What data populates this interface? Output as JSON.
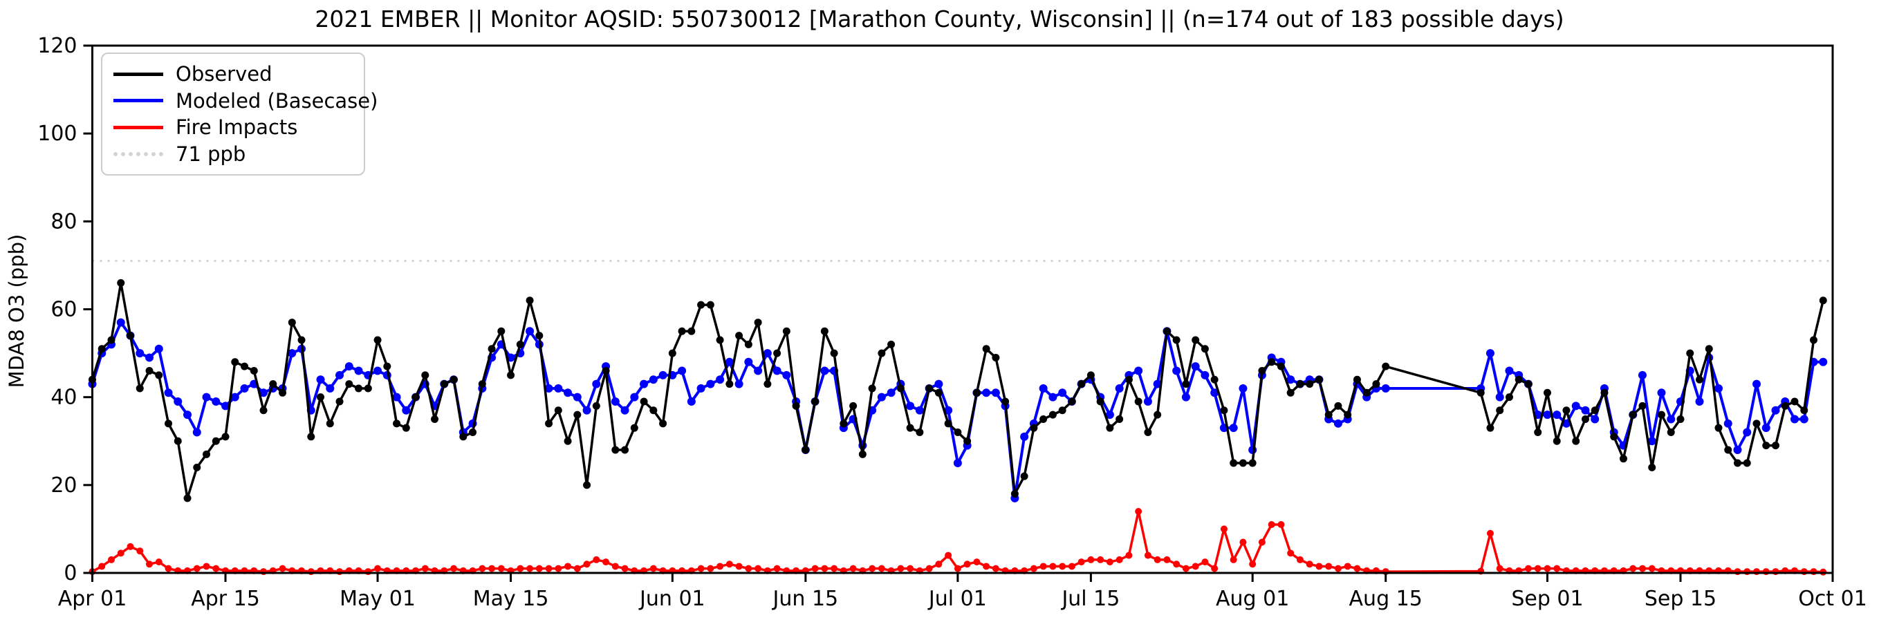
{
  "title": "2021 EMBER || Monitor AQSID: 550730012 [Marathon County, Wisconsin] || (n=174 out of 183 possible days)",
  "y_axis": {
    "label": "MDA8 O3 (ppb)",
    "ticks": [
      0,
      20,
      40,
      60,
      80,
      100,
      120
    ]
  },
  "x_axis": {
    "ticks": [
      {
        "label": "Apr 01",
        "day": 0
      },
      {
        "label": "Apr 15",
        "day": 14
      },
      {
        "label": "May 01",
        "day": 30
      },
      {
        "label": "May 15",
        "day": 44
      },
      {
        "label": "Jun 01",
        "day": 61
      },
      {
        "label": "Jun 15",
        "day": 75
      },
      {
        "label": "Jul 01",
        "day": 91
      },
      {
        "label": "Jul 15",
        "day": 105
      },
      {
        "label": "Aug 01",
        "day": 122
      },
      {
        "label": "Aug 15",
        "day": 136
      },
      {
        "label": "Sep 01",
        "day": 153
      },
      {
        "label": "Sep 15",
        "day": 167
      },
      {
        "label": "Oct 01",
        "day": 183
      }
    ]
  },
  "legend": {
    "items": [
      {
        "label": "Observed",
        "color": "#000000",
        "style": "solid"
      },
      {
        "label": "Modeled (Basecase)",
        "color": "#0000ff",
        "style": "solid"
      },
      {
        "label": "Fire Impacts",
        "color": "#ff0000",
        "style": "solid"
      },
      {
        "label": "71 ppb",
        "color": "#d3d3d3",
        "style": "dotted"
      }
    ]
  },
  "chart_data": {
    "type": "line",
    "title": "2021 EMBER || Monitor AQSID: 550730012 [Marathon County, Wisconsin] || (n=174 out of 183 possible days)",
    "xlabel": "",
    "ylabel": "MDA8 O3 (ppb)",
    "ylim": [
      0,
      120
    ],
    "x_days_total": 183,
    "x_start_label": "Apr 01",
    "x_end_label": "Oct 01",
    "grid": false,
    "legend_position": "upper left",
    "threshold": {
      "value": 71,
      "label": "71 ppb",
      "color": "#d3d3d3"
    },
    "note_missing_days": "Aug 16 - Aug 24 have no data (n=174 of 183); lines connect straight across the gap",
    "series": [
      {
        "name": "Observed",
        "color": "#000000",
        "marker_radius": 5.5,
        "line_width": 3.5,
        "values": [
          44,
          51,
          53,
          66,
          54,
          42,
          46,
          45,
          34,
          30,
          17,
          24,
          27,
          30,
          31,
          48,
          47,
          46,
          37,
          43,
          41,
          57,
          53,
          31,
          40,
          34,
          39,
          43,
          42,
          42,
          53,
          47,
          34,
          33,
          40,
          45,
          35,
          43,
          44,
          31,
          32,
          43,
          51,
          55,
          45,
          52,
          62,
          54,
          34,
          37,
          30,
          36,
          20,
          38,
          46,
          28,
          28,
          33,
          39,
          37,
          34,
          50,
          55,
          55,
          61,
          61,
          53,
          43,
          54,
          52,
          57,
          43,
          50,
          55,
          38,
          28,
          39,
          55,
          50,
          34,
          38,
          27,
          42,
          50,
          52,
          42,
          33,
          32,
          42,
          41,
          34,
          32,
          30,
          41,
          51,
          49,
          39,
          18,
          22,
          33,
          35,
          36,
          37,
          39,
          43,
          45,
          39,
          33,
          35,
          44,
          39,
          32,
          36,
          55,
          53,
          43,
          53,
          51,
          44,
          37,
          25,
          25,
          25,
          46,
          48,
          47,
          41,
          43,
          43,
          44,
          36,
          38,
          36,
          44,
          41,
          43,
          47,
          null,
          null,
          null,
          null,
          null,
          null,
          null,
          null,
          null,
          41,
          33,
          37,
          40,
          44,
          43,
          32,
          41,
          30,
          37,
          30,
          35,
          37,
          41,
          31,
          26,
          36,
          38,
          24,
          36,
          32,
          35,
          50,
          44,
          51,
          33,
          28,
          25,
          25,
          34,
          29,
          29,
          38,
          39,
          37,
          53,
          62
        ]
      },
      {
        "name": "Modeled (Basecase)",
        "color": "#0000ff",
        "marker_radius": 6,
        "line_width": 4,
        "values": [
          43,
          50,
          52,
          57,
          54,
          50,
          49,
          51,
          41,
          39,
          36,
          32,
          40,
          39,
          38,
          40,
          42,
          43,
          41,
          42,
          42,
          50,
          51,
          37,
          44,
          42,
          45,
          47,
          46,
          45,
          46,
          45,
          40,
          37,
          40,
          43,
          38,
          43,
          44,
          32,
          34,
          42,
          49,
          52,
          49,
          50,
          55,
          52,
          42,
          42,
          41,
          40,
          37,
          43,
          47,
          39,
          37,
          40,
          43,
          44,
          45,
          45,
          46,
          39,
          42,
          43,
          44,
          48,
          43,
          48,
          46,
          50,
          46,
          45,
          39,
          28,
          39,
          46,
          46,
          33,
          35,
          29,
          37,
          40,
          41,
          43,
          38,
          37,
          42,
          43,
          37,
          25,
          29,
          41,
          41,
          41,
          38,
          17,
          31,
          34,
          42,
          40,
          41,
          39,
          43,
          44,
          40,
          36,
          42,
          45,
          46,
          39,
          43,
          55,
          46,
          40,
          47,
          45,
          41,
          33,
          33,
          42,
          28,
          45,
          49,
          48,
          44,
          43,
          44,
          44,
          35,
          34,
          35,
          43,
          40,
          42,
          42,
          null,
          null,
          null,
          null,
          null,
          null,
          null,
          null,
          null,
          42,
          50,
          40,
          46,
          45,
          43,
          36,
          36,
          36,
          34,
          38,
          37,
          35,
          42,
          32,
          29,
          36,
          45,
          30,
          41,
          35,
          39,
          46,
          39,
          49,
          42,
          34,
          28,
          32,
          43,
          33,
          37,
          39,
          35,
          35,
          48,
          48
        ]
      },
      {
        "name": "Fire Impacts",
        "color": "#ff0000",
        "marker_radius": 5,
        "line_width": 3.5,
        "values": [
          0.3,
          1.5,
          3,
          4.5,
          6,
          5,
          2,
          2.5,
          1,
          0.5,
          0.5,
          1,
          1.5,
          1,
          0.5,
          0.5,
          0.5,
          0.5,
          0.3,
          0.5,
          1,
          0.5,
          0.5,
          0.3,
          0.5,
          0.5,
          0.3,
          0.5,
          0.5,
          0.3,
          1,
          0.5,
          0.5,
          0.5,
          0.5,
          1,
          0.5,
          0.5,
          1,
          0.5,
          0.5,
          1,
          1,
          1,
          0.5,
          1,
          1,
          1,
          1,
          1,
          1.5,
          1,
          2,
          3,
          2.5,
          1.5,
          1,
          0.5,
          0.5,
          1,
          0.5,
          0.5,
          0.5,
          0.5,
          1,
          1,
          1.5,
          2,
          1.5,
          1,
          1,
          0.5,
          1,
          0.5,
          0.5,
          0.5,
          1,
          1,
          1,
          0.5,
          1,
          0.5,
          1,
          1,
          0.5,
          1,
          1,
          0.5,
          1,
          2,
          4,
          1,
          2,
          2.5,
          1.5,
          1,
          0.5,
          0.5,
          0.5,
          1,
          1.5,
          1.5,
          1.5,
          1.5,
          2.5,
          3,
          3,
          2.5,
          3,
          4,
          14,
          4,
          3,
          3,
          2,
          1,
          1.5,
          2.5,
          1,
          10,
          3,
          7,
          2,
          7,
          11,
          11,
          4.5,
          3,
          2,
          1.5,
          1.5,
          1,
          1.5,
          1,
          0.5,
          0.5,
          0.3,
          null,
          null,
          null,
          null,
          null,
          null,
          null,
          null,
          null,
          0.4,
          9,
          1,
          0.5,
          0.5,
          1,
          1,
          1,
          1,
          0.5,
          0.5,
          0.5,
          0.5,
          0.5,
          0.5,
          0.5,
          1,
          1,
          1,
          0.5,
          0.5,
          0.5,
          0.5,
          0.5,
          0.5,
          0.5,
          0.5,
          0.3,
          0.3,
          0.3,
          0.3,
          0.3,
          0.5,
          0.5,
          0.3,
          0.3,
          0.2
        ]
      }
    ]
  },
  "colors": {
    "spine": "#000000",
    "background": "#ffffff"
  }
}
